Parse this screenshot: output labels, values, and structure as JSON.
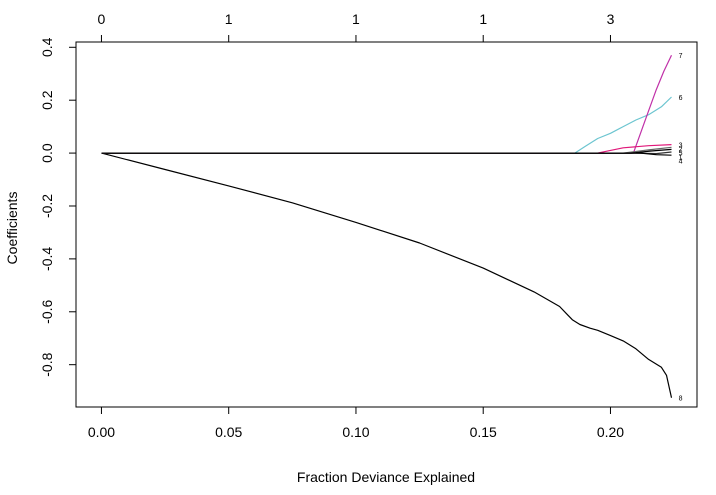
{
  "chart_data": {
    "type": "line",
    "title": "",
    "xlabel": "Fraction Deviance Explained",
    "ylabel": "Coefficients",
    "xlim": [
      -0.01,
      0.234
    ],
    "ylim": [
      -0.96,
      0.42
    ],
    "xticks": [
      0.0,
      0.05,
      0.1,
      0.15,
      0.2
    ],
    "xtick_labels": [
      "0.00",
      "0.05",
      "0.10",
      "0.15",
      "0.20"
    ],
    "yticks": [
      -0.8,
      -0.6,
      -0.4,
      -0.2,
      0.0,
      0.2,
      0.4
    ],
    "ytick_labels": [
      "-0.8",
      "-0.6",
      "-0.4",
      "-0.2",
      "0.0",
      "0.2",
      "0.4"
    ],
    "top_axis": {
      "ticks": [
        0.0,
        0.05,
        0.1,
        0.15,
        0.2
      ],
      "labels": [
        "0",
        "1",
        "1",
        "1",
        "3"
      ]
    },
    "grid": false,
    "legend": "none",
    "series": [
      {
        "label": "8",
        "color": "#000000",
        "x": [
          0.0,
          0.025,
          0.05,
          0.075,
          0.1,
          0.125,
          0.15,
          0.17,
          0.18,
          0.183,
          0.185,
          0.188,
          0.192,
          0.195,
          0.2,
          0.205,
          0.21,
          0.215,
          0.22,
          0.222,
          0.224
        ],
        "y": [
          0.0,
          -0.062,
          -0.124,
          -0.188,
          -0.262,
          -0.34,
          -0.435,
          -0.525,
          -0.58,
          -0.61,
          -0.63,
          -0.648,
          -0.662,
          -0.67,
          -0.69,
          -0.71,
          -0.74,
          -0.78,
          -0.81,
          -0.84,
          -0.925
        ]
      },
      {
        "label": "6",
        "color": "#6cc5d0",
        "x": [
          0.0,
          0.186,
          0.19,
          0.195,
          0.2,
          0.205,
          0.21,
          0.215,
          0.22,
          0.224
        ],
        "y": [
          0.0,
          0.0,
          0.025,
          0.055,
          0.075,
          0.1,
          0.125,
          0.145,
          0.175,
          0.212
        ]
      },
      {
        "label": "7",
        "color": "#c030a8",
        "x": [
          0.0,
          0.209,
          0.212,
          0.215,
          0.218,
          0.221,
          0.224
        ],
        "y": [
          0.0,
          0.0,
          0.08,
          0.16,
          0.24,
          0.31,
          0.37
        ]
      },
      {
        "label": "3",
        "color": "#e0187a",
        "x": [
          0.0,
          0.195,
          0.205,
          0.215,
          0.224
        ],
        "y": [
          0.0,
          0.0,
          0.02,
          0.028,
          0.032
        ]
      },
      {
        "label": "2",
        "color": "#666666",
        "x": [
          0.0,
          0.205,
          0.215,
          0.224
        ],
        "y": [
          0.0,
          0.0,
          0.012,
          0.022
        ]
      },
      {
        "label": "5",
        "color": "#000000",
        "x": [
          0.0,
          0.208,
          0.216,
          0.224
        ],
        "y": [
          0.0,
          0.0,
          0.008,
          0.014
        ]
      },
      {
        "label": "1",
        "color": "#333333",
        "x": [
          0.0,
          0.21,
          0.218,
          0.224
        ],
        "y": [
          0.0,
          0.0,
          -0.002,
          0.004
        ]
      },
      {
        "label": "4",
        "color": "#000000",
        "x": [
          0.0,
          0.212,
          0.218,
          0.224
        ],
        "y": [
          0.0,
          0.0,
          -0.006,
          -0.008
        ]
      }
    ]
  }
}
